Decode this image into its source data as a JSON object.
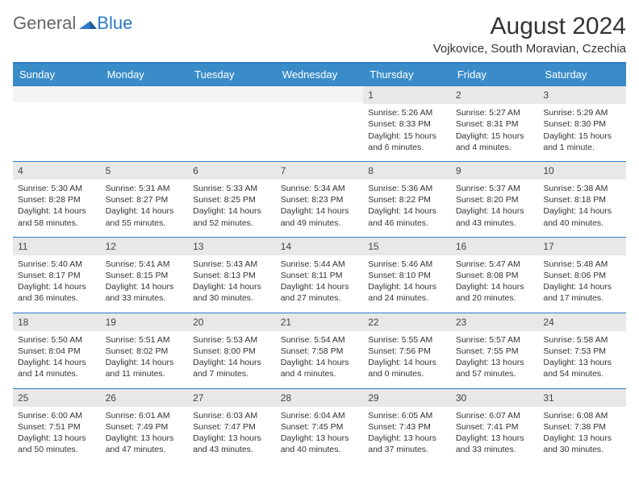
{
  "logo": {
    "part1": "General",
    "part2": "Blue"
  },
  "title": "August 2024",
  "location": "Vojkovice, South Moravian, Czechia",
  "weekday_headers": [
    "Sunday",
    "Monday",
    "Tuesday",
    "Wednesday",
    "Thursday",
    "Friday",
    "Saturday"
  ],
  "colors": {
    "header_bg": "#3a8cc9",
    "header_text": "#ffffff",
    "border": "#2b7bc3",
    "daynum_bg": "#e8e8e8",
    "text": "#333333"
  },
  "weeks": [
    [
      {
        "day": "",
        "lines": []
      },
      {
        "day": "",
        "lines": []
      },
      {
        "day": "",
        "lines": []
      },
      {
        "day": "",
        "lines": []
      },
      {
        "day": "1",
        "lines": [
          "Sunrise: 5:26 AM",
          "Sunset: 8:33 PM",
          "Daylight: 15 hours and 6 minutes."
        ]
      },
      {
        "day": "2",
        "lines": [
          "Sunrise: 5:27 AM",
          "Sunset: 8:31 PM",
          "Daylight: 15 hours and 4 minutes."
        ]
      },
      {
        "day": "3",
        "lines": [
          "Sunrise: 5:29 AM",
          "Sunset: 8:30 PM",
          "Daylight: 15 hours and 1 minute."
        ]
      }
    ],
    [
      {
        "day": "4",
        "lines": [
          "Sunrise: 5:30 AM",
          "Sunset: 8:28 PM",
          "Daylight: 14 hours and 58 minutes."
        ]
      },
      {
        "day": "5",
        "lines": [
          "Sunrise: 5:31 AM",
          "Sunset: 8:27 PM",
          "Daylight: 14 hours and 55 minutes."
        ]
      },
      {
        "day": "6",
        "lines": [
          "Sunrise: 5:33 AM",
          "Sunset: 8:25 PM",
          "Daylight: 14 hours and 52 minutes."
        ]
      },
      {
        "day": "7",
        "lines": [
          "Sunrise: 5:34 AM",
          "Sunset: 8:23 PM",
          "Daylight: 14 hours and 49 minutes."
        ]
      },
      {
        "day": "8",
        "lines": [
          "Sunrise: 5:36 AM",
          "Sunset: 8:22 PM",
          "Daylight: 14 hours and 46 minutes."
        ]
      },
      {
        "day": "9",
        "lines": [
          "Sunrise: 5:37 AM",
          "Sunset: 8:20 PM",
          "Daylight: 14 hours and 43 minutes."
        ]
      },
      {
        "day": "10",
        "lines": [
          "Sunrise: 5:38 AM",
          "Sunset: 8:18 PM",
          "Daylight: 14 hours and 40 minutes."
        ]
      }
    ],
    [
      {
        "day": "11",
        "lines": [
          "Sunrise: 5:40 AM",
          "Sunset: 8:17 PM",
          "Daylight: 14 hours and 36 minutes."
        ]
      },
      {
        "day": "12",
        "lines": [
          "Sunrise: 5:41 AM",
          "Sunset: 8:15 PM",
          "Daylight: 14 hours and 33 minutes."
        ]
      },
      {
        "day": "13",
        "lines": [
          "Sunrise: 5:43 AM",
          "Sunset: 8:13 PM",
          "Daylight: 14 hours and 30 minutes."
        ]
      },
      {
        "day": "14",
        "lines": [
          "Sunrise: 5:44 AM",
          "Sunset: 8:11 PM",
          "Daylight: 14 hours and 27 minutes."
        ]
      },
      {
        "day": "15",
        "lines": [
          "Sunrise: 5:46 AM",
          "Sunset: 8:10 PM",
          "Daylight: 14 hours and 24 minutes."
        ]
      },
      {
        "day": "16",
        "lines": [
          "Sunrise: 5:47 AM",
          "Sunset: 8:08 PM",
          "Daylight: 14 hours and 20 minutes."
        ]
      },
      {
        "day": "17",
        "lines": [
          "Sunrise: 5:48 AM",
          "Sunset: 8:06 PM",
          "Daylight: 14 hours and 17 minutes."
        ]
      }
    ],
    [
      {
        "day": "18",
        "lines": [
          "Sunrise: 5:50 AM",
          "Sunset: 8:04 PM",
          "Daylight: 14 hours and 14 minutes."
        ]
      },
      {
        "day": "19",
        "lines": [
          "Sunrise: 5:51 AM",
          "Sunset: 8:02 PM",
          "Daylight: 14 hours and 11 minutes."
        ]
      },
      {
        "day": "20",
        "lines": [
          "Sunrise: 5:53 AM",
          "Sunset: 8:00 PM",
          "Daylight: 14 hours and 7 minutes."
        ]
      },
      {
        "day": "21",
        "lines": [
          "Sunrise: 5:54 AM",
          "Sunset: 7:58 PM",
          "Daylight: 14 hours and 4 minutes."
        ]
      },
      {
        "day": "22",
        "lines": [
          "Sunrise: 5:55 AM",
          "Sunset: 7:56 PM",
          "Daylight: 14 hours and 0 minutes."
        ]
      },
      {
        "day": "23",
        "lines": [
          "Sunrise: 5:57 AM",
          "Sunset: 7:55 PM",
          "Daylight: 13 hours and 57 minutes."
        ]
      },
      {
        "day": "24",
        "lines": [
          "Sunrise: 5:58 AM",
          "Sunset: 7:53 PM",
          "Daylight: 13 hours and 54 minutes."
        ]
      }
    ],
    [
      {
        "day": "25",
        "lines": [
          "Sunrise: 6:00 AM",
          "Sunset: 7:51 PM",
          "Daylight: 13 hours and 50 minutes."
        ]
      },
      {
        "day": "26",
        "lines": [
          "Sunrise: 6:01 AM",
          "Sunset: 7:49 PM",
          "Daylight: 13 hours and 47 minutes."
        ]
      },
      {
        "day": "27",
        "lines": [
          "Sunrise: 6:03 AM",
          "Sunset: 7:47 PM",
          "Daylight: 13 hours and 43 minutes."
        ]
      },
      {
        "day": "28",
        "lines": [
          "Sunrise: 6:04 AM",
          "Sunset: 7:45 PM",
          "Daylight: 13 hours and 40 minutes."
        ]
      },
      {
        "day": "29",
        "lines": [
          "Sunrise: 6:05 AM",
          "Sunset: 7:43 PM",
          "Daylight: 13 hours and 37 minutes."
        ]
      },
      {
        "day": "30",
        "lines": [
          "Sunrise: 6:07 AM",
          "Sunset: 7:41 PM",
          "Daylight: 13 hours and 33 minutes."
        ]
      },
      {
        "day": "31",
        "lines": [
          "Sunrise: 6:08 AM",
          "Sunset: 7:38 PM",
          "Daylight: 13 hours and 30 minutes."
        ]
      }
    ]
  ]
}
